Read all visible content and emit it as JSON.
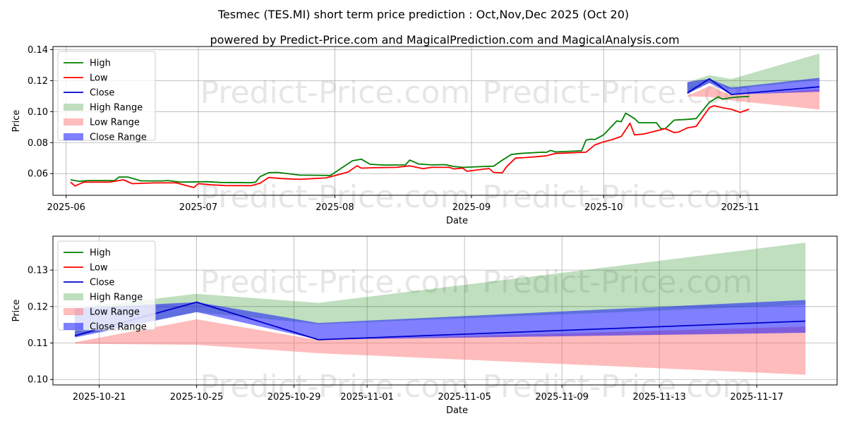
{
  "chart_data": [
    {
      "id": "top",
      "type": "line",
      "title": "Tesmec (TES.MI) short term price prediction : Oct,Nov,Dec 2025 (Oct 20)",
      "subtitle": "powered by Predict-Price.com and MagicalPrediction.com and MagicalAnalysis.com",
      "xlabel": "Date",
      "ylabel": "Price",
      "xlim": [
        "2025-05-29",
        "2025-11-23"
      ],
      "ylim": [
        0.046,
        0.142
      ],
      "grid": true,
      "legend_position": "top-left",
      "x_ticks": [
        "2025-06-01",
        "2025-07-01",
        "2025-08-01",
        "2025-09-01",
        "2025-10-01",
        "2025-11-01"
      ],
      "x_tick_labels": [
        "2025-06",
        "2025-07",
        "2025-08",
        "2025-09",
        "2025-10",
        "2025-11"
      ],
      "y_ticks": [
        0.06,
        0.08,
        0.1,
        0.12,
        0.14
      ],
      "y_tick_labels": [
        "0.06",
        "0.08",
        "0.10",
        "0.12",
        "0.14"
      ],
      "watermark": "Predict-Price.com",
      "series": [
        {
          "name": "High",
          "color": "#008000",
          "points": [
            [
              "2025-06-02",
              0.056
            ],
            [
              "2025-06-04",
              0.055
            ],
            [
              "2025-06-06",
              0.0555
            ],
            [
              "2025-06-10",
              0.0555
            ],
            [
              "2025-06-12",
              0.0555
            ],
            [
              "2025-06-13",
              0.0578
            ],
            [
              "2025-06-15",
              0.0578
            ],
            [
              "2025-06-18",
              0.0553
            ],
            [
              "2025-06-23",
              0.0553
            ],
            [
              "2025-06-24",
              0.0555
            ],
            [
              "2025-06-27",
              0.0545
            ],
            [
              "2025-07-03",
              0.0548
            ],
            [
              "2025-07-06",
              0.0543
            ],
            [
              "2025-07-13",
              0.0541
            ],
            [
              "2025-07-14",
              0.0545
            ],
            [
              "2025-07-15",
              0.058
            ],
            [
              "2025-07-17",
              0.0606
            ],
            [
              "2025-07-19",
              0.0608
            ],
            [
              "2025-07-24",
              0.059
            ],
            [
              "2025-07-31",
              0.0588
            ],
            [
              "2025-08-05",
              0.0683
            ],
            [
              "2025-08-07",
              0.0693
            ],
            [
              "2025-08-09",
              0.066
            ],
            [
              "2025-08-12",
              0.0655
            ],
            [
              "2025-08-17",
              0.0656
            ],
            [
              "2025-08-18",
              0.0687
            ],
            [
              "2025-08-20",
              0.0662
            ],
            [
              "2025-08-23",
              0.0656
            ],
            [
              "2025-08-26",
              0.0658
            ],
            [
              "2025-08-28",
              0.0646
            ],
            [
              "2025-08-30",
              0.064
            ],
            [
              "2025-09-04",
              0.0646
            ],
            [
              "2025-09-06",
              0.0648
            ],
            [
              "2025-09-08",
              0.0686
            ],
            [
              "2025-09-10",
              0.0723
            ],
            [
              "2025-09-12",
              0.073
            ],
            [
              "2025-09-15",
              0.0735
            ],
            [
              "2025-09-17",
              0.0738
            ],
            [
              "2025-09-18",
              0.0737
            ],
            [
              "2025-09-19",
              0.075
            ],
            [
              "2025-09-20",
              0.074
            ],
            [
              "2025-09-26",
              0.0747
            ],
            [
              "2025-09-27",
              0.0816
            ],
            [
              "2025-09-28",
              0.0822
            ],
            [
              "2025-09-29",
              0.082
            ],
            [
              "2025-10-01",
              0.085
            ],
            [
              "2025-10-04",
              0.094
            ],
            [
              "2025-10-05",
              0.0935
            ],
            [
              "2025-10-06",
              0.099
            ],
            [
              "2025-10-08",
              0.0955
            ],
            [
              "2025-10-09",
              0.0928
            ],
            [
              "2025-10-12",
              0.0928
            ],
            [
              "2025-10-13",
              0.0928
            ],
            [
              "2025-10-14",
              0.089
            ],
            [
              "2025-10-15",
              0.089
            ],
            [
              "2025-10-17",
              0.0945
            ],
            [
              "2025-10-20",
              0.095
            ],
            [
              "2025-10-22",
              0.0955
            ]
          ]
        },
        {
          "name": "Low",
          "color": "#ff0000",
          "points": [
            [
              "2025-06-02",
              0.0545
            ],
            [
              "2025-06-03",
              0.052
            ],
            [
              "2025-06-05",
              0.0545
            ],
            [
              "2025-06-11",
              0.0545
            ],
            [
              "2025-06-14",
              0.056
            ],
            [
              "2025-06-16",
              0.0535
            ],
            [
              "2025-06-21",
              0.054
            ],
            [
              "2025-06-24",
              0.054
            ],
            [
              "2025-06-26",
              0.054
            ],
            [
              "2025-06-30",
              0.051
            ],
            [
              "2025-07-01",
              0.0535
            ],
            [
              "2025-07-04",
              0.0528
            ],
            [
              "2025-07-07",
              0.0523
            ],
            [
              "2025-07-13",
              0.0522
            ],
            [
              "2025-07-15",
              0.0538
            ],
            [
              "2025-07-17",
              0.0575
            ],
            [
              "2025-07-20",
              0.0568
            ],
            [
              "2025-07-24",
              0.0563
            ],
            [
              "2025-07-27",
              0.0568
            ],
            [
              "2025-07-30",
              0.0572
            ],
            [
              "2025-08-04",
              0.061
            ],
            [
              "2025-08-06",
              0.065
            ],
            [
              "2025-08-07",
              0.0635
            ],
            [
              "2025-08-10",
              0.0638
            ],
            [
              "2025-08-15",
              0.064
            ],
            [
              "2025-08-18",
              0.065
            ],
            [
              "2025-08-21",
              0.0632
            ],
            [
              "2025-08-23",
              0.064
            ],
            [
              "2025-08-27",
              0.064
            ],
            [
              "2025-08-28",
              0.063
            ],
            [
              "2025-08-30",
              0.0635
            ],
            [
              "2025-08-31",
              0.0615
            ],
            [
              "2025-09-03",
              0.0626
            ],
            [
              "2025-09-05",
              0.0633
            ],
            [
              "2025-09-06",
              0.0608
            ],
            [
              "2025-09-08",
              0.0605
            ],
            [
              "2025-09-09",
              0.0645
            ],
            [
              "2025-09-11",
              0.07
            ],
            [
              "2025-09-13",
              0.0703
            ],
            [
              "2025-09-16",
              0.071
            ],
            [
              "2025-09-18",
              0.0715
            ],
            [
              "2025-09-20",
              0.073
            ],
            [
              "2025-09-27",
              0.0738
            ],
            [
              "2025-09-29",
              0.0785
            ],
            [
              "2025-10-01",
              0.0805
            ],
            [
              "2025-10-03",
              0.082
            ],
            [
              "2025-10-05",
              0.084
            ],
            [
              "2025-10-07",
              0.0925
            ],
            [
              "2025-10-08",
              0.085
            ],
            [
              "2025-10-10",
              0.0855
            ],
            [
              "2025-10-15",
              0.089
            ],
            [
              "2025-10-17",
              0.0865
            ],
            [
              "2025-10-18",
              0.0868
            ],
            [
              "2025-10-20",
              0.0895
            ],
            [
              "2025-10-22",
              0.0905
            ]
          ]
        },
        {
          "name": "Close",
          "color": "#0000cc",
          "points": [
            [
              "2025-10-20",
              0.112
            ],
            [
              "2025-10-25",
              0.1212
            ],
            [
              "2025-10-30",
              0.111
            ],
            [
              "2025-11-19",
              0.116
            ]
          ]
        }
      ],
      "bands": [
        {
          "name": "High Range",
          "color": "#008000",
          "opacity": 0.25,
          "lower": [
            [
              "2025-10-20",
              0.1115
            ],
            [
              "2025-10-25",
              0.1185
            ],
            [
              "2025-10-30",
              0.1145
            ],
            [
              "2025-11-19",
              0.1205
            ]
          ],
          "upper": [
            [
              "2025-10-20",
              0.119
            ],
            [
              "2025-10-25",
              0.1235
            ],
            [
              "2025-10-30",
              0.121
            ],
            [
              "2025-11-19",
              0.1375
            ]
          ]
        },
        {
          "name": "Low Range",
          "color": "#ff6b6b",
          "opacity": 0.45,
          "lower": [
            [
              "2025-10-20",
              0.1098
            ],
            [
              "2025-10-25",
              0.1095
            ],
            [
              "2025-10-30",
              0.1072
            ],
            [
              "2025-11-19",
              0.1013
            ]
          ],
          "upper": [
            [
              "2025-10-20",
              0.1102
            ],
            [
              "2025-10-25",
              0.1165
            ],
            [
              "2025-10-30",
              0.1105
            ],
            [
              "2025-11-19",
              0.1145
            ]
          ]
        },
        {
          "name": "Close Range",
          "color": "#0000ff",
          "opacity": 0.5,
          "lower": [
            [
              "2025-10-20",
              0.1115
            ],
            [
              "2025-10-25",
              0.1185
            ],
            [
              "2025-10-30",
              0.111
            ],
            [
              "2025-11-19",
              0.1128
            ]
          ],
          "upper": [
            [
              "2025-10-20",
              0.119
            ],
            [
              "2025-10-25",
              0.1212
            ],
            [
              "2025-10-30",
              0.1155
            ],
            [
              "2025-11-19",
              0.1218
            ]
          ]
        }
      ]
    },
    {
      "id": "bottom",
      "type": "line",
      "xlabel": "Date",
      "ylabel": "Price",
      "xlim": [
        "2025-10-19.1",
        "2025-11-20.3"
      ],
      "ylim": [
        0.0985,
        0.1393
      ],
      "grid": true,
      "legend_position": "top-left",
      "x_ticks": [
        "2025-10-21",
        "2025-10-25",
        "2025-10-29",
        "2025-11-01",
        "2025-11-05",
        "2025-11-09",
        "2025-11-13",
        "2025-11-17"
      ],
      "x_tick_labels": [
        "2025-10-21",
        "2025-10-25",
        "2025-10-29",
        "2025-11-01",
        "2025-11-05",
        "2025-11-09",
        "2025-11-13",
        "2025-11-17"
      ],
      "y_ticks": [
        0.1,
        0.11,
        0.12,
        0.13
      ],
      "y_tick_labels": [
        "0.10",
        "0.11",
        "0.12",
        "0.13"
      ],
      "watermark": "Predict-Price.com",
      "series": [
        {
          "name": "High",
          "color": "#008000",
          "points": []
        },
        {
          "name": "Low",
          "color": "#ff0000",
          "points": []
        },
        {
          "name": "Close",
          "color": "#0000cc",
          "points": [
            [
              "2025-10-20",
              0.112
            ],
            [
              "2025-10-25",
              0.1212
            ],
            [
              "2025-10-30",
              0.1109
            ],
            [
              "2025-11-19",
              0.116
            ]
          ]
        }
      ],
      "bands": [
        {
          "name": "High Range",
          "color": "#008000",
          "opacity": 0.25,
          "lower": [
            [
              "2025-10-20",
              0.1118
            ],
            [
              "2025-10-25",
              0.1185
            ],
            [
              "2025-10-30",
              0.1152
            ],
            [
              "2025-11-19",
              0.1205
            ]
          ],
          "upper": [
            [
              "2025-10-20",
              0.1195
            ],
            [
              "2025-10-25",
              0.1235
            ],
            [
              "2025-10-30",
              0.121
            ],
            [
              "2025-11-19",
              0.1375
            ]
          ]
        },
        {
          "name": "Low Range",
          "color": "#ff6b6b",
          "opacity": 0.45,
          "lower": [
            [
              "2025-10-20",
              0.1098
            ],
            [
              "2025-10-25",
              0.1095
            ],
            [
              "2025-10-30",
              0.1072
            ],
            [
              "2025-11-19",
              0.1013
            ]
          ],
          "upper": [
            [
              "2025-10-20",
              0.1102
            ],
            [
              "2025-10-25",
              0.1165
            ],
            [
              "2025-10-30",
              0.1108
            ],
            [
              "2025-11-19",
              0.1145
            ]
          ]
        },
        {
          "name": "Close Range",
          "color": "#0000ff",
          "opacity": 0.5,
          "lower": [
            [
              "2025-10-20",
              0.1115
            ],
            [
              "2025-10-25",
              0.1185
            ],
            [
              "2025-10-30",
              0.1109
            ],
            [
              "2025-11-19",
              0.1128
            ]
          ],
          "upper": [
            [
              "2025-10-20",
              0.1195
            ],
            [
              "2025-10-25",
              0.1212
            ],
            [
              "2025-10-30",
              0.1155
            ],
            [
              "2025-11-19",
              0.1218
            ]
          ]
        }
      ]
    }
  ],
  "top_extra_series": {
    "High": [
      [
        "2025-10-22",
        0.0955
      ],
      [
        "2025-10-25",
        0.106
      ],
      [
        "2025-10-27",
        0.1095
      ],
      [
        "2025-10-28",
        0.108
      ],
      [
        "2025-10-30",
        0.109
      ],
      [
        "2025-11-01",
        0.1095
      ],
      [
        "2025-11-03",
        0.1098
      ]
    ],
    "Low": [
      [
        "2025-10-22",
        0.0905
      ],
      [
        "2025-10-25",
        0.1025
      ],
      [
        "2025-10-26",
        0.1038
      ],
      [
        "2025-10-28",
        0.1025
      ],
      [
        "2025-10-30",
        0.1015
      ],
      [
        "2025-11-01",
        0.0995
      ],
      [
        "2025-11-03",
        0.1015
      ]
    ]
  }
}
